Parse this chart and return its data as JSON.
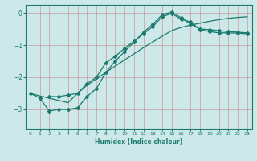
{
  "xlabel": "Humidex (Indice chaleur)",
  "ylabel": "",
  "bg_color": "#cce8e8",
  "grid_color": "#aacccc",
  "line_color": "#1a7a6e",
  "xlim": [
    -0.5,
    23.5
  ],
  "ylim": [
    -3.6,
    0.25
  ],
  "yticks": [
    0,
    -1,
    -2,
    -3
  ],
  "xticks": [
    0,
    1,
    2,
    3,
    4,
    5,
    6,
    7,
    8,
    9,
    10,
    11,
    12,
    13,
    14,
    15,
    16,
    17,
    18,
    19,
    20,
    21,
    22,
    23
  ],
  "line1_x": [
    0,
    1,
    2,
    3,
    4,
    5,
    6,
    7,
    8,
    9,
    10,
    11,
    12,
    13,
    14,
    15,
    16,
    17,
    18,
    19,
    20,
    21,
    22,
    23
  ],
  "line1_y": [
    -2.5,
    -2.65,
    -3.05,
    -3.0,
    -3.0,
    -2.95,
    -2.6,
    -2.35,
    -1.85,
    -1.5,
    -1.2,
    -0.9,
    -0.6,
    -0.35,
    -0.05,
    0.02,
    -0.15,
    -0.35,
    -0.5,
    -0.52,
    -0.55,
    -0.58,
    -0.6,
    -0.62
  ],
  "line2_x": [
    2,
    3,
    4,
    5,
    6,
    7,
    8,
    9,
    10,
    11,
    12,
    13,
    14,
    15,
    16,
    17,
    18,
    19,
    20,
    21,
    22,
    23
  ],
  "line2_y": [
    -2.6,
    -2.6,
    -2.55,
    -2.5,
    -2.2,
    -2.0,
    -1.55,
    -1.35,
    -1.1,
    -0.88,
    -0.65,
    -0.42,
    -0.12,
    -0.02,
    -0.2,
    -0.28,
    -0.52,
    -0.58,
    -0.62,
    -0.62,
    -0.63,
    -0.65
  ],
  "line3_x": [
    0,
    1,
    2,
    3,
    4,
    5,
    6,
    7,
    8,
    9,
    10,
    11,
    12,
    13,
    14,
    15,
    16,
    17,
    18,
    19,
    20,
    21,
    22,
    23
  ],
  "line3_y": [
    -2.5,
    -2.58,
    -2.65,
    -2.72,
    -2.79,
    -2.5,
    -2.25,
    -2.05,
    -1.85,
    -1.65,
    -1.46,
    -1.27,
    -1.08,
    -0.9,
    -0.72,
    -0.55,
    -0.45,
    -0.38,
    -0.32,
    -0.26,
    -0.21,
    -0.17,
    -0.14,
    -0.12
  ]
}
